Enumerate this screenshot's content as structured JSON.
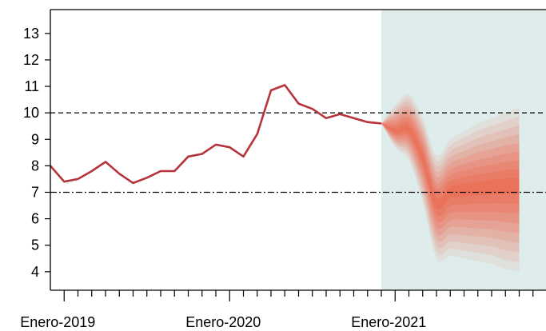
{
  "chart_data": {
    "type": "line",
    "title": "",
    "xlabel": "",
    "ylabel": "",
    "ylim": [
      3.3,
      13.9
    ],
    "y_ticks": [
      4,
      5,
      6,
      7,
      8,
      9,
      10,
      11,
      12,
      13
    ],
    "x_tick_labels": [
      "Enero-2019",
      "Enero-2020",
      "Enero-2021"
    ],
    "grid": false,
    "series": [
      {
        "style": "solid",
        "color": "#b5333a",
        "x": [
          "2018-12",
          "2019-01",
          "2019-02",
          "2019-03",
          "2019-04",
          "2019-05",
          "2019-06",
          "2019-07",
          "2019-08",
          "2019-09",
          "2019-10",
          "2019-11",
          "2019-12",
          "2020-01",
          "2020-02",
          "2020-03",
          "2020-04",
          "2020-05",
          "2020-06",
          "2020-07",
          "2020-08",
          "2020-09",
          "2020-10",
          "2020-11",
          "2020-12"
        ],
        "values": [
          8.0,
          7.4,
          7.5,
          7.8,
          8.15,
          7.7,
          7.35,
          7.55,
          7.8,
          7.8,
          8.35,
          8.45,
          8.8,
          8.7,
          8.35,
          9.2,
          10.85,
          11.05,
          10.35,
          10.15,
          9.8,
          9.95,
          9.8,
          9.65,
          9.6
        ]
      }
    ],
    "reference_lines": [
      {
        "value": 10,
        "style": "dashed"
      },
      {
        "value": 7,
        "style": "dash-dot"
      }
    ],
    "fan_chart": {
      "color": "#f04a2c",
      "background": "#deeceb",
      "x": [
        "2020-12",
        "2021-01",
        "2021-02",
        "2021-03",
        "2021-04",
        "2021-05",
        "2021-06",
        "2021-07",
        "2021-08",
        "2021-09",
        "2021-10"
      ],
      "center": [
        9.6,
        9.3,
        9.35,
        8.3,
        6.6,
        7.0,
        7.1,
        7.15,
        7.2,
        7.25,
        7.25
      ],
      "outer_upper": [
        9.6,
        10.3,
        10.7,
        9.8,
        8.4,
        9.0,
        9.3,
        9.6,
        9.8,
        10.0,
        10.2
      ],
      "outer_lower": [
        9.6,
        8.7,
        8.2,
        6.6,
        4.5,
        4.6,
        4.5,
        4.4,
        4.3,
        4.1,
        4.0
      ]
    }
  }
}
